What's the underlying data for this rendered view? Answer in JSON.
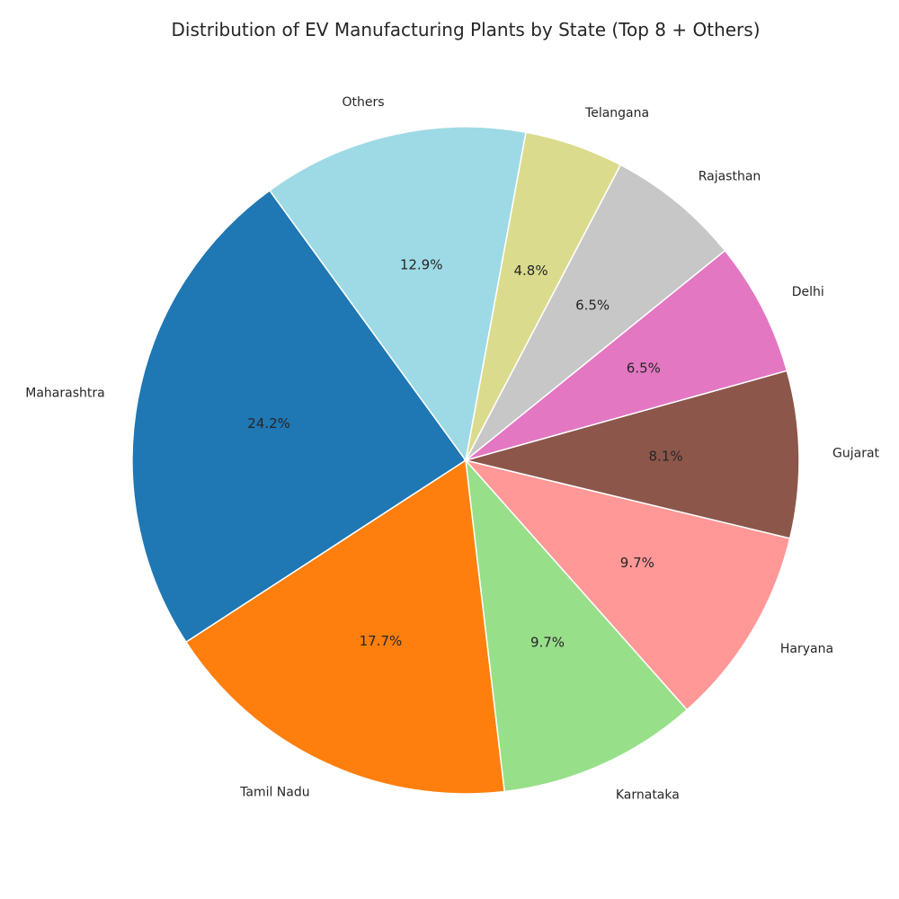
{
  "chart_data": {
    "type": "pie",
    "title": "Distribution of EV Manufacturing Plants by State (Top 8 + Others)",
    "start_angle_deg": 126,
    "direction": "counterclockwise",
    "slices": [
      {
        "label": "Maharashtra",
        "pct_label": "24.2%",
        "value": 24.2,
        "color": "#1f77b4"
      },
      {
        "label": "Tamil Nadu",
        "pct_label": "17.7%",
        "value": 17.7,
        "color": "#ff7f0e"
      },
      {
        "label": "Karnataka",
        "pct_label": "9.7%",
        "value": 9.7,
        "color": "#98df8a"
      },
      {
        "label": "Haryana",
        "pct_label": "9.7%",
        "value": 9.7,
        "color": "#ff9896"
      },
      {
        "label": "Gujarat",
        "pct_label": "8.1%",
        "value": 8.1,
        "color": "#8c564b"
      },
      {
        "label": "Delhi",
        "pct_label": "6.5%",
        "value": 6.5,
        "color": "#e377c2"
      },
      {
        "label": "Rajasthan",
        "pct_label": "6.5%",
        "value": 6.5,
        "color": "#c7c7c7"
      },
      {
        "label": "Telangana",
        "pct_label": "4.8%",
        "value": 4.8,
        "color": "#dbdb8d"
      },
      {
        "label": "Others",
        "pct_label": "12.9%",
        "value": 12.9,
        "color": "#9edae5"
      }
    ]
  }
}
